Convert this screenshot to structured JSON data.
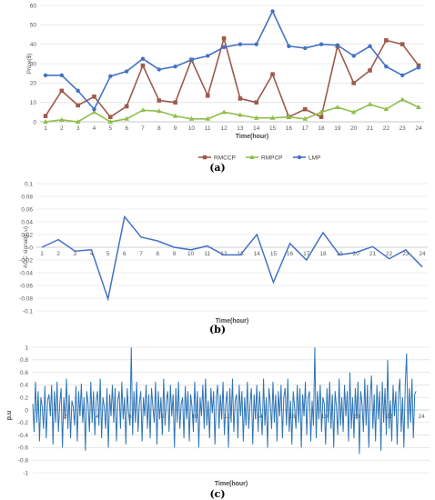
{
  "chart_data": [
    {
      "type": "line",
      "panel_label": "(a)",
      "ylabel": "Price($)",
      "xlabel": "Time(hour)",
      "ylim": [
        0,
        60
      ],
      "yticks": [
        0,
        10,
        20,
        30,
        40,
        50,
        60
      ],
      "x": [
        1,
        2,
        3,
        4,
        5,
        6,
        7,
        8,
        9,
        10,
        11,
        12,
        13,
        14,
        15,
        16,
        17,
        18,
        19,
        20,
        21,
        22,
        23,
        24
      ],
      "grid": true,
      "legend_position": "bottom",
      "series": [
        {
          "name": "RMCCP",
          "color": "#9e5a4a",
          "marker": "square",
          "values": [
            3,
            16,
            8.5,
            13,
            2.5,
            8,
            29,
            11,
            10,
            32,
            13.5,
            43,
            12,
            10,
            24.5,
            2.5,
            6.5,
            2.5,
            39,
            20,
            26.5,
            42,
            40,
            29
          ]
        },
        {
          "name": "RMPCP",
          "color": "#8fbf4a",
          "marker": "triangle",
          "values": [
            0,
            1,
            0,
            5,
            0,
            1.5,
            6,
            5.5,
            3,
            1.5,
            1.5,
            5,
            3.5,
            2,
            2,
            2.5,
            1.5,
            5,
            7.5,
            5,
            9,
            6.5,
            11.5,
            7.5
          ]
        },
        {
          "name": "LMP",
          "color": "#4472c4",
          "marker": "circle",
          "values": [
            24,
            24,
            16,
            6.5,
            23.5,
            26,
            32.5,
            27,
            28.5,
            32,
            34,
            38.5,
            40,
            40,
            57,
            39,
            38,
            40,
            39.5,
            34,
            39,
            28.5,
            24,
            28
          ]
        }
      ]
    },
    {
      "type": "line",
      "panel_label": "(b)",
      "ylabel": "AGC signal(p.u)",
      "xlabel": "Time(hour)",
      "ylim": [
        -0.1,
        0.1
      ],
      "yticks": [
        -0.1,
        -0.08,
        -0.06,
        -0.04,
        -0.02,
        0,
        0.02,
        0.04,
        0.06,
        0.08,
        0.1
      ],
      "ytick_labels": [
        "-0.1",
        "-0.08",
        "-0.06",
        "-0.04",
        "-0.02",
        "0",
        "0.02",
        "0.04",
        "0.06",
        "0.08",
        "0.1"
      ],
      "x": [
        1,
        2,
        3,
        4,
        5,
        6,
        7,
        8,
        9,
        10,
        11,
        12,
        13,
        14,
        15,
        16,
        17,
        18,
        19,
        20,
        21,
        22,
        23,
        24
      ],
      "grid": true,
      "series": [
        {
          "color": "#4472c4",
          "values": [
            0,
            0.012,
            -0.006,
            -0.004,
            -0.081,
            0.048,
            0.016,
            0.01,
            0,
            -0.004,
            0.002,
            -0.012,
            -0.012,
            0.02,
            -0.055,
            0.006,
            -0.02,
            0.023,
            -0.012,
            -0.008,
            0.001,
            -0.018,
            -0.004,
            -0.031
          ]
        }
      ]
    },
    {
      "type": "line",
      "panel_label": "(c)",
      "ylabel": "p.u",
      "xlabel": "Time(hour)",
      "ylim": [
        -1,
        1
      ],
      "yticks": [
        -1,
        -0.8,
        -0.6,
        -0.4,
        -0.2,
        0,
        0.2,
        0.4,
        0.6,
        0.8,
        1
      ],
      "ytick_labels": [
        "-1",
        "-0.8",
        "-0.6",
        "-0.4",
        "-0.2",
        "0",
        "0.2",
        "0.4",
        "0.6",
        "0.8",
        "1"
      ],
      "x_ticks": [
        2,
        4,
        6,
        8,
        10,
        12,
        14,
        16,
        18,
        20,
        22,
        24
      ],
      "x_range": [
        0,
        24.5
      ],
      "grid": true,
      "series": [
        {
          "color": "#2e75b6",
          "samples_per_hour": 12,
          "values": [
            0.1,
            -0.35,
            0.45,
            -0.2,
            0.3,
            -0.5,
            0.2,
            0.05,
            -0.3,
            0.38,
            -0.45,
            0.15,
            0.25,
            -0.1,
            0.4,
            -0.55,
            0.3,
            -0.2,
            0.45,
            -0.35,
            0.1,
            0.35,
            -0.6,
            0.2,
            -0.15,
            0.5,
            -0.3,
            0.25,
            -0.45,
            0.15,
            0.05,
            -0.25,
            0.38,
            -0.5,
            0.3,
            -0.1,
            0.42,
            -0.2,
            0.2,
            -0.65,
            0.3,
            0.1,
            -0.35,
            0.45,
            -0.2,
            0.3,
            -0.4,
            0.15,
            0.3,
            -0.25,
            0.5,
            -0.45,
            0.2,
            0.05,
            -0.3,
            0.35,
            -0.6,
            0.25,
            -0.1,
            0.4,
            -0.2,
            0.35,
            -0.5,
            0.15,
            0.3,
            -0.3,
            0.45,
            -0.15,
            0.2,
            -0.55,
            0.35,
            -0.05,
            -0.25,
            1.0,
            -0.4,
            0.3,
            -0.2,
            0.45,
            -0.35,
            0.1,
            0.3,
            -0.5,
            0.2,
            -0.1,
            0.4,
            -0.3,
            0.25,
            -0.45,
            0.35,
            0.05,
            -0.2,
            0.45,
            -0.55,
            0.3,
            -0.15,
            0.2,
            -0.4,
            0.5,
            -0.25,
            0.15,
            0.3,
            -0.35,
            0.4,
            -0.1,
            0.25,
            -0.6,
            0.35,
            -0.2,
            0.45,
            -0.3,
            0.1,
            0.2,
            -0.45,
            0.38,
            -0.15,
            0.3,
            -0.5,
            0.25,
            0.05,
            -0.35,
            0.45,
            -0.2,
            0.3,
            -0.6,
            0.2,
            -0.1,
            0.4,
            -0.3,
            0.5,
            -0.25,
            0.15,
            -0.45,
            0.35,
            -0.05,
            0.3,
            -0.55,
            0.2,
            0.4,
            -0.3,
            0.25,
            -0.15,
            0.45,
            -0.4,
            0.1,
            0.3,
            -0.6,
            0.35,
            -0.2,
            0.5,
            -0.35,
            0.15,
            0.25,
            -0.45,
            0.4,
            -0.1,
            0.3,
            -0.5,
            0.2,
            -0.25,
            0.45,
            -0.3,
            0.1,
            0.35,
            -0.55,
            0.25,
            -0.15,
            0.4,
            -0.35,
            0.3,
            -0.05,
            -0.4,
            0.5,
            -0.25,
            0.2,
            -0.6,
            0.35,
            0.1,
            -0.3,
            0.45,
            -0.2,
            0.25,
            -0.5,
            0.3,
            -0.1,
            0.4,
            -0.45,
            0.2,
            0.35,
            -0.25,
            0.5,
            -0.35,
            0.15,
            -0.55,
            0.3,
            0.05,
            -0.3,
            0.4,
            -0.2,
            0.35,
            -0.6,
            0.25,
            -0.1,
            0.45,
            -0.4,
            0.2,
            0.3,
            -0.5,
            0.15,
            -0.25,
            1.0,
            -0.45,
            0.3,
            -0.15,
            0.4,
            -0.35,
            0.2,
            0.1,
            -0.55,
            0.35,
            -0.2,
            0.45,
            -0.3,
            0.25,
            -0.6,
            0.3,
            0.05,
            -0.4,
            0.5,
            -0.25,
            0.2,
            -0.35,
            0.4,
            -0.1,
            0.3,
            -0.5,
            0.6,
            -0.3,
            0.2,
            -0.45,
            0.35,
            -0.15,
            0.45,
            -0.7,
            0.3,
            0.1,
            -0.35,
            0.5,
            -0.25,
            0.4,
            -0.6,
            0.2,
            0.55,
            -0.3,
            0.25,
            -0.5,
            0.4,
            -0.15,
            0.3,
            -0.65,
            0.45,
            -0.2,
            0.35,
            -0.4,
            0.8,
            -0.3,
            0.15,
            -0.5,
            0.4,
            -0.1,
            0.3,
            -0.55,
            0.25,
            0.5,
            -0.35,
            0.2,
            -0.6,
            0.4,
            0.9,
            -0.3,
            0.35,
            -0.2,
            0.5,
            -0.45,
            0.25,
            0.3
          ]
        }
      ]
    }
  ]
}
